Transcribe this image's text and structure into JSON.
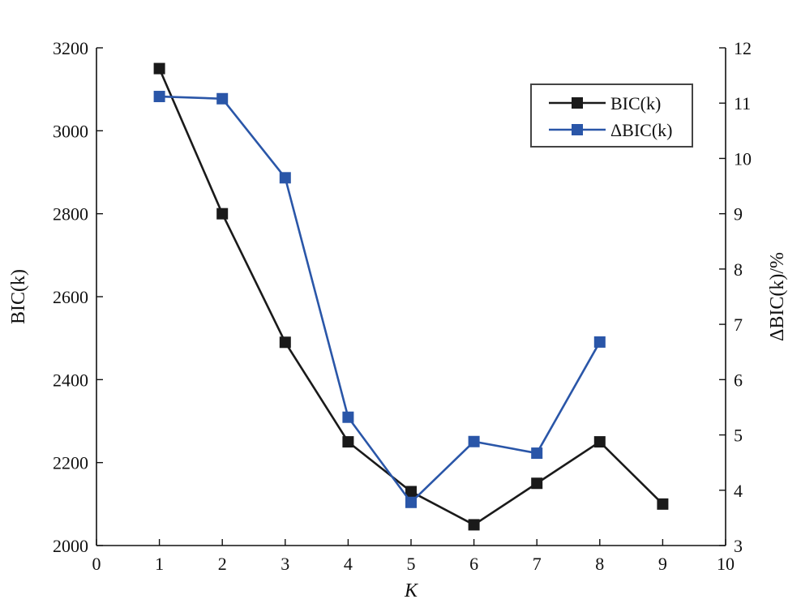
{
  "chart_data": {
    "type": "line",
    "title": "",
    "xlabel": "K",
    "ylabel_left": "BIC(k)",
    "ylabel_right": "ΔBIC(k)/%",
    "xlim": [
      0,
      10
    ],
    "ylim_left": [
      2000,
      3200
    ],
    "ylim_right": [
      3,
      12
    ],
    "xticks": [
      0,
      1,
      2,
      3,
      4,
      5,
      6,
      7,
      8,
      9,
      10
    ],
    "yticks_left": [
      2000,
      2200,
      2400,
      2600,
      2800,
      3000,
      3200
    ],
    "yticks_right": [
      3,
      4,
      5,
      6,
      7,
      8,
      9,
      10,
      11,
      12
    ],
    "grid": false,
    "legend_position": "top-right",
    "series": [
      {
        "name": "BIC(k)",
        "axis": "left",
        "color": "#1a1a1a",
        "marker": "square",
        "x": [
          1,
          2,
          3,
          4,
          5,
          6,
          7,
          8,
          9
        ],
        "values": [
          3150,
          2800,
          2490,
          2250,
          2130,
          2050,
          2150,
          2250,
          2100
        ]
      },
      {
        "name": "ΔBIC(k)",
        "axis": "right",
        "color": "#2a56a8",
        "marker": "square",
        "x": [
          1,
          2,
          3,
          4,
          5,
          6,
          7,
          8
        ],
        "values": [
          11.12,
          11.08,
          9.65,
          5.32,
          3.78,
          4.88,
          4.67,
          6.68
        ]
      }
    ]
  }
}
